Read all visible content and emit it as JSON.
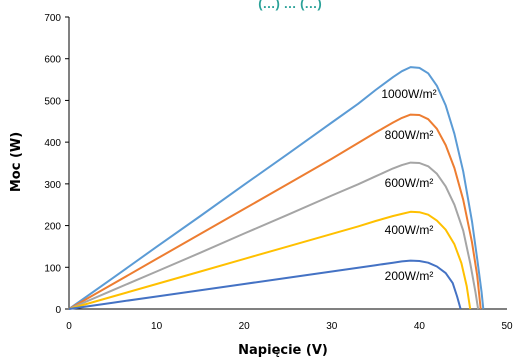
{
  "chart_data": {
    "type": "line",
    "title_fragment": "(…) … (…)",
    "xlabel": "Napięcie (V)",
    "ylabel": "Moc (W)",
    "xlim": [
      0,
      50
    ],
    "ylim": [
      0,
      700
    ],
    "x_ticks": [
      "0",
      "10",
      "20",
      "30",
      "40",
      "50"
    ],
    "y_ticks": [
      "0",
      "100",
      "200",
      "300",
      "400",
      "500",
      "600",
      "700"
    ],
    "grid": false,
    "series": [
      {
        "name": "1000W/m²",
        "color": "#5b9bd5",
        "points": [
          [
            0,
            0
          ],
          [
            5,
            74
          ],
          [
            10,
            149
          ],
          [
            15,
            223
          ],
          [
            20,
            298
          ],
          [
            25,
            372
          ],
          [
            30,
            447
          ],
          [
            33,
            492
          ],
          [
            35,
            525
          ],
          [
            37,
            556
          ],
          [
            38,
            570
          ],
          [
            39,
            580
          ],
          [
            40,
            578
          ],
          [
            41,
            565
          ],
          [
            42,
            535
          ],
          [
            43,
            488
          ],
          [
            44,
            420
          ],
          [
            45,
            330
          ],
          [
            46,
            210
          ],
          [
            46.6,
            120
          ],
          [
            47.1,
            40
          ],
          [
            47.3,
            0
          ]
        ]
      },
      {
        "name": "800W/m²",
        "color": "#ed7d31",
        "points": [
          [
            0,
            0
          ],
          [
            5,
            60
          ],
          [
            10,
            120
          ],
          [
            15,
            180
          ],
          [
            20,
            240
          ],
          [
            25,
            300
          ],
          [
            30,
            360
          ],
          [
            33,
            398
          ],
          [
            35,
            423
          ],
          [
            37,
            447
          ],
          [
            38,
            458
          ],
          [
            39,
            466
          ],
          [
            40,
            465
          ],
          [
            41,
            455
          ],
          [
            42,
            432
          ],
          [
            43,
            393
          ],
          [
            44,
            338
          ],
          [
            45,
            262
          ],
          [
            46,
            160
          ],
          [
            46.6,
            80
          ],
          [
            47.0,
            0
          ]
        ]
      },
      {
        "name": "600W/m²",
        "color": "#a5a5a5",
        "points": [
          [
            0,
            0
          ],
          [
            5,
            45
          ],
          [
            10,
            90
          ],
          [
            15,
            135
          ],
          [
            20,
            181
          ],
          [
            25,
            226
          ],
          [
            30,
            272
          ],
          [
            33,
            299
          ],
          [
            35,
            318
          ],
          [
            37,
            337
          ],
          [
            38,
            345
          ],
          [
            39,
            351
          ],
          [
            40,
            350
          ],
          [
            41,
            342
          ],
          [
            42,
            324
          ],
          [
            43,
            294
          ],
          [
            44,
            250
          ],
          [
            45,
            188
          ],
          [
            45.8,
            110
          ],
          [
            46.4,
            40
          ],
          [
            46.7,
            0
          ]
        ]
      },
      {
        "name": "400W/m²",
        "color": "#ffc000",
        "points": [
          [
            0,
            0
          ],
          [
            5,
            30
          ],
          [
            10,
            60
          ],
          [
            15,
            90
          ],
          [
            20,
            120
          ],
          [
            25,
            150
          ],
          [
            30,
            180
          ],
          [
            33,
            198
          ],
          [
            35,
            211
          ],
          [
            37,
            223
          ],
          [
            38,
            228
          ],
          [
            39,
            233
          ],
          [
            40,
            232
          ],
          [
            41,
            226
          ],
          [
            42,
            212
          ],
          [
            43,
            190
          ],
          [
            44,
            155
          ],
          [
            44.8,
            110
          ],
          [
            45.4,
            55
          ],
          [
            45.8,
            0
          ]
        ]
      },
      {
        "name": "200W/m²",
        "color": "#4472c4",
        "points": [
          [
            0,
            0
          ],
          [
            5,
            15
          ],
          [
            10,
            30
          ],
          [
            15,
            45
          ],
          [
            20,
            60
          ],
          [
            25,
            75
          ],
          [
            30,
            90
          ],
          [
            33,
            99
          ],
          [
            35,
            105
          ],
          [
            37,
            111
          ],
          [
            38,
            114
          ],
          [
            39,
            116
          ],
          [
            40,
            115
          ],
          [
            41,
            111
          ],
          [
            42,
            102
          ],
          [
            43,
            86
          ],
          [
            43.8,
            62
          ],
          [
            44.3,
            30
          ],
          [
            44.7,
            0
          ]
        ]
      }
    ]
  }
}
